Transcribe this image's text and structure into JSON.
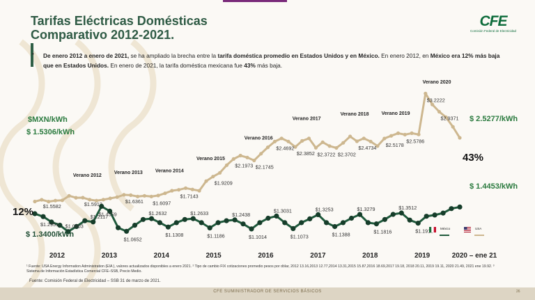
{
  "title_line1": "Tarifas Eléctricas Domésticas",
  "title_line2": "Comparativo 2012-2021.",
  "logo": {
    "mark": "CFE",
    "subtitle": "Comisión Federal de Electricidad"
  },
  "bullet": "•",
  "desc": {
    "p1": "De enero 2012 a enero de 2021,",
    "p2": " se ha ampliado la brecha entre la ",
    "p3": "tarifa doméstica promedio en Estados Unidos y en México.",
    "p4": " En enero 2012, en ",
    "p5": "México era 12% más baja que en Estados Unidos.",
    "p6": " En enero de 2021, la tarifa doméstica mexicana fue ",
    "p7": "43%",
    "p8": " más baja."
  },
  "left_labels": {
    "unit": "$MXN/kWh",
    "usa_start": "$ 1.5306/kWh",
    "pct_start": "12%",
    "mx_start": "$ 1.3400/kWh"
  },
  "right_labels": {
    "usa_end": "$ 2.5277/kWh",
    "pct_end": "43%",
    "mx_end": "$ 1.4453/kWh"
  },
  "legend": {
    "mexico": "México",
    "usa": "USA"
  },
  "colors": {
    "usa": "#cdb78f",
    "mexico": "#1f5a3c",
    "mexico_dot": "#163d2a",
    "green_text": "#2a7a3e",
    "title": "#2e5a44"
  },
  "chart_data": {
    "type": "line",
    "ylabel": "$MXN/kWh",
    "x_axis_labels": [
      "2012",
      "2013",
      "2014",
      "2015",
      "2016",
      "2017",
      "2018",
      "2019",
      "2020 – ene 21"
    ],
    "series": [
      {
        "name": "USA",
        "color": "#cdb78f",
        "values": [
          1.5306,
          1.5582,
          1.53,
          1.545,
          1.55,
          1.62,
          1.59,
          1.5913,
          1.56,
          1.545,
          1.56,
          1.58,
          1.6,
          1.6361,
          1.63,
          1.61,
          1.62,
          1.6097,
          1.625,
          1.66,
          1.7,
          1.7143,
          1.74,
          1.72,
          1.7,
          1.85,
          1.9209,
          1.98,
          2.1,
          2.1973,
          2.25,
          2.22,
          2.1745,
          2.28,
          2.38,
          2.4692,
          2.52,
          2.47,
          2.3852,
          2.48,
          2.52,
          2.3722,
          2.46,
          2.4,
          2.3702,
          2.45,
          2.55,
          2.4734,
          2.52,
          2.47,
          2.4,
          2.5178,
          2.56,
          2.6,
          2.5786,
          2.6,
          2.58,
          3.2222,
          3.05,
          2.9371,
          2.85,
          2.7,
          2.5277
        ]
      },
      {
        "name": "México",
        "color": "#1f5a3c",
        "values": [
          1.34,
          1.2951,
          1.21,
          1.16,
          1.0603,
          1.14,
          1.23,
          1.2117,
          1.4559,
          1.38,
          1.12,
          1.0652,
          1.16,
          1.25,
          1.2632,
          1.2,
          1.1308,
          1.2,
          1.25,
          1.2633,
          1.2,
          1.1186,
          1.2,
          1.23,
          1.2438,
          1.18,
          1.1014,
          1.2,
          1.27,
          1.3031,
          1.2,
          1.1073,
          1.2,
          1.26,
          1.3253,
          1.2,
          1.1388,
          1.2,
          1.27,
          1.3279,
          1.2,
          1.1816,
          1.25,
          1.33,
          1.3512,
          1.24,
          1.1918,
          1.3,
          1.32,
          1.35,
          1.42,
          1.4453
        ]
      }
    ],
    "annotations_usa": [
      {
        "index": 1,
        "label": "$1.5582"
      },
      {
        "index": 7,
        "label": "$1.5913"
      },
      {
        "index": 13,
        "label": "$1.6361"
      },
      {
        "index": 17,
        "label": "$1.6097"
      },
      {
        "index": 21,
        "label": "$1.7143"
      },
      {
        "index": 26,
        "label": "$1.9209"
      },
      {
        "index": 29,
        "label": "$2.1973"
      },
      {
        "index": 32,
        "label": "$2.1745"
      },
      {
        "index": 35,
        "label": "$2.4692"
      },
      {
        "index": 38,
        "label": "$2.3852"
      },
      {
        "index": 41,
        "label": "$2.3722"
      },
      {
        "index": 44,
        "label": "$2.3702"
      },
      {
        "index": 47,
        "label": "$2.4734"
      },
      {
        "index": 51,
        "label": "$2.5178"
      },
      {
        "index": 54,
        "label": "$2.5786"
      },
      {
        "index": 57,
        "label": "$3.2222"
      },
      {
        "index": 59,
        "label": "$2.9371"
      }
    ],
    "annotations_mex": [
      {
        "index": 1,
        "label": "$1.2951"
      },
      {
        "index": 4,
        "label": "$1.0603"
      },
      {
        "index": 7,
        "label": "$1.2117"
      },
      {
        "index": 8,
        "label": "$1.4559"
      },
      {
        "index": 11,
        "label": "$1.0652"
      },
      {
        "index": 14,
        "label": "$1.2632"
      },
      {
        "index": 16,
        "label": "$1.1308"
      },
      {
        "index": 19,
        "label": "$1.2633"
      },
      {
        "index": 21,
        "label": "$1.1186"
      },
      {
        "index": 24,
        "label": "$1.2438"
      },
      {
        "index": 26,
        "label": "$1.1014"
      },
      {
        "index": 29,
        "label": "$1.3031"
      },
      {
        "index": 31,
        "label": "$1.1073"
      },
      {
        "index": 34,
        "label": "$1.3253"
      },
      {
        "index": 36,
        "label": "$1.1388"
      },
      {
        "index": 39,
        "label": "$1.3279"
      },
      {
        "index": 41,
        "label": "$1.1816"
      },
      {
        "index": 44,
        "label": "$1.3512"
      },
      {
        "index": 46,
        "label": "$1.1918"
      }
    ],
    "summer_labels": [
      {
        "index": 7,
        "label": "Verano 2012"
      },
      {
        "index": 13,
        "label": "Verano 2013"
      },
      {
        "index": 19,
        "label": "Verano 2014"
      },
      {
        "index": 25,
        "label": "Verano 2015"
      },
      {
        "index": 32,
        "label": "Verano 2016"
      },
      {
        "index": 39,
        "label": "Verano 2017"
      },
      {
        "index": 46,
        "label": "Verano 2018"
      },
      {
        "index": 52,
        "label": "Verano 2019"
      },
      {
        "index": 58,
        "label": "Verano 2020"
      }
    ]
  },
  "footnote": "¹ Fuente: USA Energy Information Administration (EIA ), valores actualizados disponibles a enero 2021. ² Tipo de cambio FIX cotizaciones promedio pesos por  dólar, 2012 13.16,2013 12.77,2014 13.31,2015 15.87,2016 18.69,2017 19.18, 2018 20.11, 2019 19.11, 2020 21.49, 2021 ene 19.92. ³ Sistema de Información Estadística Comercial CFE–SSB, Precio Medio.",
  "source": "Fuente: Comisión Federal de Electricidad – SSB 31 de marzo de 2021.",
  "footer": {
    "text": "CFE SUMINISTRADOR DE SERVICIOS BÁSICOS",
    "page": "26"
  }
}
